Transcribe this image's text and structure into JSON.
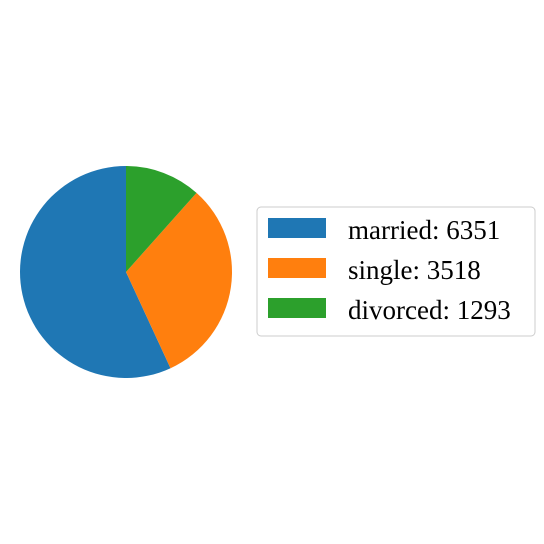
{
  "chart_data": {
    "type": "pie",
    "title": "",
    "slices": [
      {
        "label": "married",
        "value": 6351,
        "color": "#1f77b4"
      },
      {
        "label": "single",
        "value": 3518,
        "color": "#ff7f0e"
      },
      {
        "label": "divorced",
        "value": 1293,
        "color": "#2ca02c"
      }
    ],
    "legend": {
      "placement": "right",
      "entries": [
        "married: 6351",
        "single: 3518",
        "divorced: 1293"
      ]
    }
  }
}
